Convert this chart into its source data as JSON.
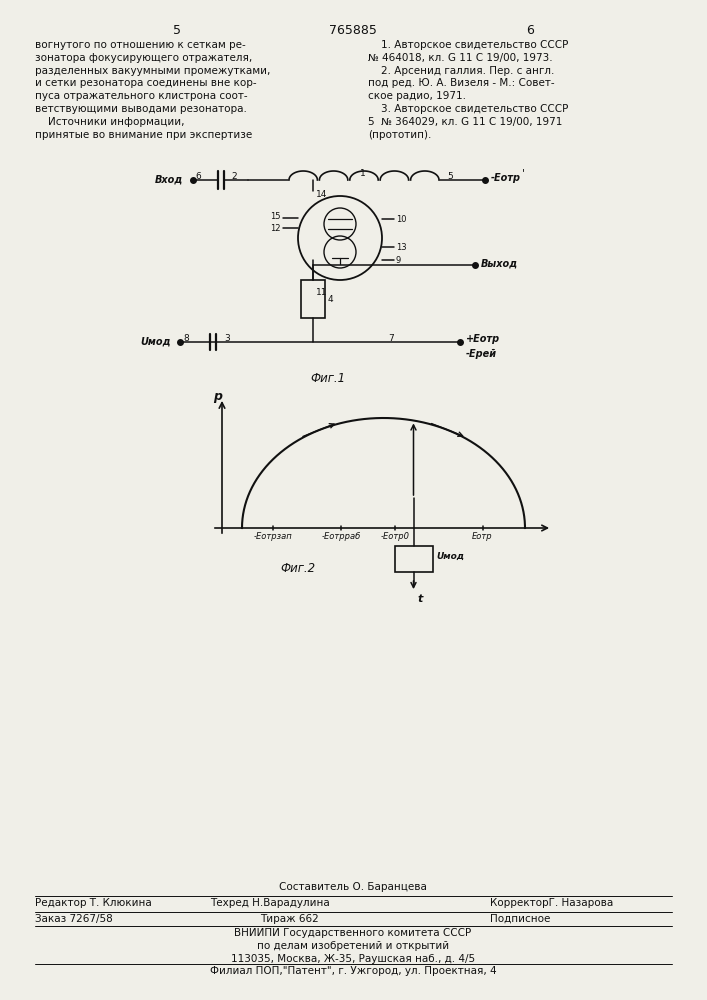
{
  "page_color": "#f0efe8",
  "left_text": [
    "вогнутого по отношению к сеткам ре-",
    "зонатора фокусирующего отражателя,",
    "разделенных вакуумными промежутками,",
    "и сетки резонатора соединены вне кор-",
    "пуса отражательного клистрона соот-",
    "ветствующими выводами резонатора.",
    "    Источники информации,",
    "принятые во внимание при экспертизе"
  ],
  "right_text": [
    "    1. Авторское свидетельство СССР",
    "№ 464018, кл. G 11 С 19/00, 1973.",
    "    2. Арсенид галлия. Пер. с англ.",
    "под ред. Ю. А. Визеля - М.: Совет-",
    "ское радио, 1971.",
    "    3. Авторское свидетельство СССР",
    "5  № 364029, кл. G 11 С 19/00, 1971",
    "(прототип)."
  ],
  "fig1_caption": "Фиг.1",
  "fig2_caption": "Фиг.2"
}
